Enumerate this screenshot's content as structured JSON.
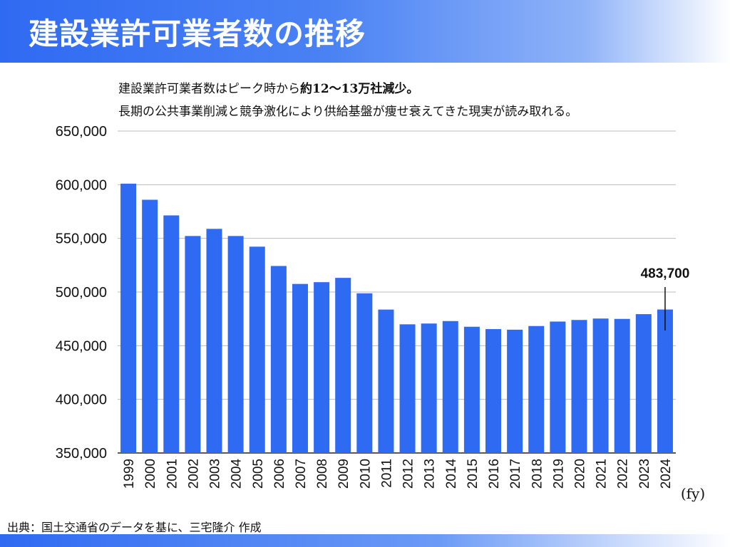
{
  "header": {
    "title": "建設業許可業者数の推移"
  },
  "subtitle": {
    "line1_a": "建設業許可業者数はピーク時から",
    "line1_b": "約12〜13万社減少。",
    "line2": "長期の公共事業削減と競争激化により供給基盤が痩せ衰えてきた現実が読み取れる。"
  },
  "source": "出典：国土交通省のデータを基に、三宅隆介 作成",
  "chart_data": {
    "type": "bar",
    "title": "建設業許可業者数の推移",
    "xlabel": "(fy)",
    "ylabel": "",
    "ylim": [
      350000,
      650000
    ],
    "yticks": [
      350000,
      400000,
      450000,
      500000,
      550000,
      600000,
      650000
    ],
    "ytick_labels": [
      "350,000",
      "400,000",
      "450,000",
      "500,000",
      "550,000",
      "600,000",
      "650,000"
    ],
    "grid": true,
    "bar_color": "#2f6af2",
    "categories": [
      "1999",
      "2000",
      "2001",
      "2002",
      "2003",
      "2004",
      "2005",
      "2006",
      "2007",
      "2008",
      "2009",
      "2010",
      "2011",
      "2012",
      "2013",
      "2014",
      "2015",
      "2016",
      "2017",
      "2018",
      "2019",
      "2020",
      "2021",
      "2022",
      "2023",
      "2024"
    ],
    "values": [
      600980,
      585959,
      571388,
      552210,
      558857,
      552201,
      542264,
      524273,
      507528,
      509174,
      513196,
      498806,
      483639,
      469900,
      470639,
      472921,
      467635,
      465454,
      464889,
      468311,
      472473,
      473952,
      475293,
      474948,
      479383,
      483700
    ],
    "annotation": {
      "category": "2024",
      "label": "483,700"
    }
  }
}
